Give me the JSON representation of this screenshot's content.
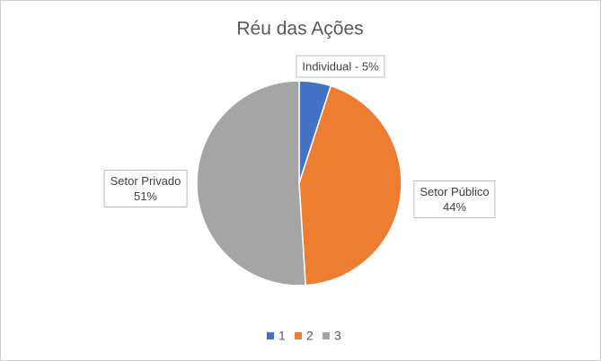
{
  "chart_data": {
    "type": "pie",
    "title": "Réu das Ações",
    "categories": [
      "Individual",
      "Setor Público",
      "Setor Privado"
    ],
    "values": [
      5,
      44,
      51
    ],
    "value_labels": [
      "Individual - 5%",
      "Setor Público\n44%",
      "Setor Privado\n51%"
    ],
    "colors": [
      "#4472c4",
      "#ed7d31",
      "#a5a5a5"
    ],
    "legend_labels": [
      "1",
      "2",
      "3"
    ],
    "legend_position": "bottom"
  }
}
